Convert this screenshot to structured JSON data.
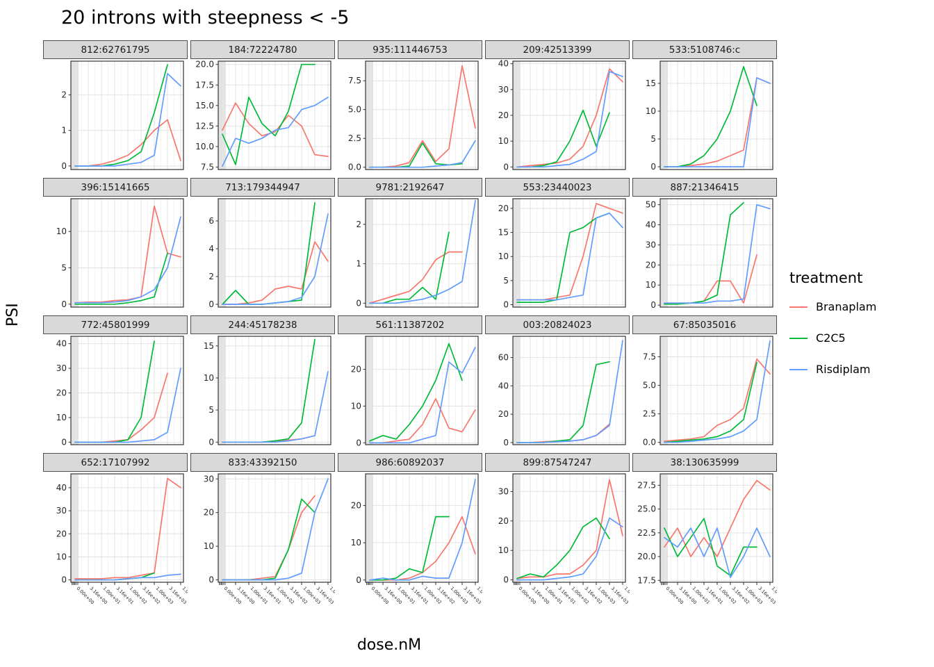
{
  "header": {
    "title": "20 introns with steepness < -5"
  },
  "axes": {
    "x_label": "dose.nM",
    "y_label": "PSI"
  },
  "legend": {
    "title": "treatment",
    "entries": [
      {
        "label": "Branaplam",
        "color": "#F8766D"
      },
      {
        "label": "C2C5",
        "color": "#00BA38"
      },
      {
        "label": "Risdiplam",
        "color": "#619CFF"
      }
    ]
  },
  "chart_data": {
    "type": "line",
    "xlabel": "dose.nM",
    "ylabel": "PSI",
    "x_labels": [
      "0.00e+00",
      "3.16e+00",
      "1.00e+01",
      "3.16e+01",
      "1.00e+02",
      "3.16e+02",
      "1.00e+03",
      "3.16e+03",
      "1.00e+04"
    ],
    "x_scale": "log-like, minor gridlines compressed at left",
    "legend_position": "right",
    "facets": [
      {
        "label": "812:62761795",
        "ylim": [
          -0.1,
          2.95
        ],
        "yticks": [
          0,
          1,
          2
        ],
        "series": {
          "Branaplam": [
            0,
            0,
            0.05,
            0.15,
            0.3,
            0.6,
            1.0,
            1.3,
            0.15
          ],
          "C2C5": [
            0,
            0,
            0,
            0.05,
            0.15,
            0.4,
            1.5,
            2.85,
            null
          ],
          "Risdiplam": [
            0,
            0,
            0,
            0,
            0.05,
            0.1,
            0.3,
            2.6,
            2.25
          ]
        }
      },
      {
        "label": "184:72224780",
        "ylim": [
          7.2,
          20.4
        ],
        "yticks": [
          7.5,
          10,
          12.5,
          15,
          17.5,
          20
        ],
        "series": {
          "Branaplam": [
            12,
            15.3,
            12.8,
            11.3,
            11.8,
            13.8,
            12.5,
            9,
            8.8
          ],
          "C2C5": [
            11.5,
            7.8,
            16,
            12.8,
            11.3,
            14.3,
            20,
            20,
            null
          ],
          "Risdiplam": [
            7.6,
            11,
            10.4,
            11,
            12,
            12.3,
            14.5,
            15,
            16
          ]
        }
      },
      {
        "label": "935:111446753",
        "ylim": [
          -0.2,
          9.2
        ],
        "yticks": [
          0,
          2.5,
          5,
          7.5
        ],
        "series": {
          "Branaplam": [
            0,
            0,
            0.1,
            0.4,
            2.3,
            0.5,
            1.6,
            8.8,
            3.4
          ],
          "C2C5": [
            0,
            0,
            0,
            0.1,
            2.1,
            0.3,
            0.2,
            0.3,
            null
          ],
          "Risdiplam": [
            0,
            0,
            0,
            0,
            0,
            0.1,
            0.2,
            0.4,
            2.3
          ]
        }
      },
      {
        "label": "209:42513399",
        "ylim": [
          -1,
          41
        ],
        "yticks": [
          0,
          10,
          20,
          30,
          40
        ],
        "series": {
          "Branaplam": [
            0,
            0.5,
            1,
            1.5,
            3,
            8,
            20,
            38,
            33
          ],
          "C2C5": [
            0,
            0,
            0.5,
            2,
            10,
            22,
            8,
            21,
            null
          ],
          "Risdiplam": [
            0,
            0,
            0,
            0.5,
            1,
            3,
            6,
            37,
            35
          ]
        }
      },
      {
        "label": "533:5108746:c",
        "ylim": [
          -0.5,
          19
        ],
        "yticks": [
          0,
          5,
          10,
          15
        ],
        "series": {
          "Branaplam": [
            0,
            0,
            0.2,
            0.5,
            1,
            2,
            3,
            16,
            15
          ],
          "C2C5": [
            0,
            0,
            0.5,
            2,
            5,
            10,
            18,
            11,
            null
          ],
          "Risdiplam": [
            0,
            0,
            0,
            0,
            0,
            0,
            0,
            16,
            15
          ]
        }
      },
      {
        "label": "396:15141665",
        "ylim": [
          -0.4,
          14.5
        ],
        "yticks": [
          0,
          5,
          10
        ],
        "series": {
          "Branaplam": [
            0.2,
            0.3,
            0.3,
            0.5,
            0.6,
            1,
            13.5,
            7,
            6.5
          ],
          "C2C5": [
            0,
            0,
            0,
            0,
            0.2,
            0.5,
            1,
            7,
            null
          ],
          "Risdiplam": [
            0.2,
            0.2,
            0.2,
            0.3,
            0.5,
            1,
            2,
            5,
            12
          ]
        }
      },
      {
        "label": "713:179344947",
        "ylim": [
          -0.2,
          7.6
        ],
        "yticks": [
          0,
          2,
          4,
          6
        ],
        "series": {
          "Branaplam": [
            0,
            0,
            0.1,
            0.3,
            1.1,
            1.3,
            1.1,
            4.5,
            3.1
          ],
          "C2C5": [
            0,
            1,
            0,
            0,
            0.1,
            0.2,
            0.3,
            7.3,
            null
          ],
          "Risdiplam": [
            0,
            0,
            0,
            0,
            0.1,
            0.2,
            0.5,
            2,
            6.5
          ]
        }
      },
      {
        "label": "9781:2192647",
        "ylim": [
          -0.1,
          2.65
        ],
        "yticks": [
          0,
          1,
          2
        ],
        "series": {
          "Branaplam": [
            0,
            0.1,
            0.2,
            0.3,
            0.6,
            1.1,
            1.3,
            1.3,
            null
          ],
          "C2C5": [
            0,
            0,
            0.1,
            0.1,
            0.4,
            0.1,
            1.8,
            null,
            null
          ],
          "Risdiplam": [
            0,
            0,
            0,
            0.05,
            0.1,
            0.2,
            0.35,
            0.55,
            2.6
          ]
        }
      },
      {
        "label": "553:23440023",
        "ylim": [
          -0.5,
          22
        ],
        "yticks": [
          0,
          5,
          10,
          15,
          20
        ],
        "series": {
          "Branaplam": [
            1,
            1,
            1,
            1.5,
            2,
            10,
            21,
            20,
            19
          ],
          "C2C5": [
            0.5,
            0.5,
            0.5,
            1,
            15,
            16,
            18,
            19,
            null
          ],
          "Risdiplam": [
            1,
            1,
            1,
            1,
            1.5,
            2,
            18,
            19,
            16
          ]
        }
      },
      {
        "label": "887:21346415",
        "ylim": [
          -1,
          53
        ],
        "yticks": [
          0,
          10,
          20,
          30,
          40,
          50
        ],
        "series": {
          "Branaplam": [
            1,
            1,
            1,
            2,
            12,
            12,
            1,
            25,
            null
          ],
          "C2C5": [
            0.5,
            0.5,
            1,
            2,
            5,
            45,
            51,
            null,
            null
          ],
          "Risdiplam": [
            1,
            1,
            1,
            1,
            2,
            2,
            3,
            50,
            48
          ]
        }
      },
      {
        "label": "772:45801999",
        "ylim": [
          -1,
          43
        ],
        "yticks": [
          0,
          10,
          20,
          30,
          40
        ],
        "series": {
          "Branaplam": [
            0,
            0,
            0,
            0.5,
            1,
            5,
            10,
            28,
            null
          ],
          "C2C5": [
            0,
            0,
            0,
            0,
            1,
            10,
            41,
            null,
            null
          ],
          "Risdiplam": [
            0,
            0,
            0,
            0,
            0,
            0.5,
            1,
            4,
            30
          ]
        }
      },
      {
        "label": "244:45178238",
        "ylim": [
          -0.4,
          16.5
        ],
        "yticks": [
          0,
          5,
          10,
          15
        ],
        "series": {
          "Branaplam": [
            0,
            0,
            0,
            0,
            0.2,
            0.3,
            0.5,
            1,
            null
          ],
          "C2C5": [
            0,
            0,
            0,
            0,
            0.2,
            0.5,
            3,
            16,
            null
          ],
          "Risdiplam": [
            0,
            0,
            0,
            0,
            0,
            0.2,
            0.5,
            1,
            11
          ]
        }
      },
      {
        "label": "561:11387202",
        "ylim": [
          -0.5,
          29
        ],
        "yticks": [
          0,
          10,
          20
        ],
        "series": {
          "Branaplam": [
            0,
            0,
            0.5,
            1,
            5,
            12,
            4,
            3,
            9
          ],
          "C2C5": [
            0.5,
            2,
            1,
            5,
            10,
            17,
            27,
            17,
            null
          ],
          "Risdiplam": [
            0,
            0,
            0,
            0,
            1,
            2,
            22,
            19,
            26
          ]
        }
      },
      {
        "label": "003:20824023",
        "ylim": [
          -1.5,
          75
        ],
        "yticks": [
          0,
          20,
          40,
          60
        ],
        "series": {
          "Branaplam": [
            0,
            0,
            0.5,
            1,
            1,
            2,
            5,
            13,
            null
          ],
          "C2C5": [
            0,
            0,
            0,
            1,
            2,
            12,
            55,
            57,
            null
          ],
          "Risdiplam": [
            0,
            0,
            0,
            0.5,
            1,
            2,
            5,
            12,
            72
          ]
        }
      },
      {
        "label": "67:85035016",
        "ylim": [
          -0.2,
          9.3
        ],
        "yticks": [
          0,
          2.5,
          5,
          7.5
        ],
        "series": {
          "Branaplam": [
            0.1,
            0.2,
            0.3,
            0.5,
            1.5,
            2,
            3,
            7.3,
            6
          ],
          "C2C5": [
            0,
            0.1,
            0.2,
            0.3,
            0.5,
            1,
            2,
            7,
            null
          ],
          "Risdiplam": [
            0,
            0,
            0.1,
            0.2,
            0.3,
            0.5,
            1,
            2,
            8.9
          ]
        }
      },
      {
        "label": "652:17107992",
        "ylim": [
          -1,
          46
        ],
        "yticks": [
          0,
          10,
          20,
          30,
          40
        ],
        "series": {
          "Branaplam": [
            0.5,
            0.5,
            0.5,
            1,
            1,
            2,
            3,
            44,
            40
          ],
          "C2C5": [
            0,
            0,
            0,
            0,
            0.5,
            1,
            3,
            null,
            null
          ],
          "Risdiplam": [
            0,
            0,
            0,
            0,
            0.5,
            1,
            1,
            2,
            2.5
          ]
        }
      },
      {
        "label": "833:43392150",
        "ylim": [
          -0.7,
          31.5
        ],
        "yticks": [
          0,
          10,
          20,
          30
        ],
        "series": {
          "Branaplam": [
            0,
            0,
            0,
            0.5,
            1,
            9,
            20,
            25,
            null
          ],
          "C2C5": [
            0,
            0,
            0,
            0,
            0.5,
            9,
            24,
            20,
            null
          ],
          "Risdiplam": [
            0,
            0,
            0,
            0,
            0,
            0.5,
            2,
            20,
            30
          ]
        }
      },
      {
        "label": "986:60892037",
        "ylim": [
          -0.6,
          28.5
        ],
        "yticks": [
          0,
          10,
          20
        ],
        "series": {
          "Branaplam": [
            0,
            0,
            0,
            0.5,
            2,
            5,
            10,
            17,
            7
          ],
          "C2C5": [
            0,
            0,
            0.5,
            3,
            2,
            17,
            17,
            null,
            null
          ],
          "Risdiplam": [
            0,
            0.5,
            0,
            0,
            1,
            0.5,
            0.5,
            10,
            27
          ]
        }
      },
      {
        "label": "899:87547247",
        "ylim": [
          -0.8,
          36
        ],
        "yticks": [
          0,
          10,
          20,
          30
        ],
        "series": {
          "Branaplam": [
            0.5,
            1,
            1,
            2,
            2,
            5,
            10,
            34,
            15
          ],
          "C2C5": [
            0.5,
            2,
            1,
            5,
            10,
            18,
            21,
            14,
            null
          ],
          "Risdiplam": [
            0,
            0,
            0,
            0.5,
            1,
            2,
            8,
            21,
            18
          ]
        }
      },
      {
        "label": "38:130635999",
        "ylim": [
          17.3,
          28.7
        ],
        "yticks": [
          17.5,
          20,
          22.5,
          25,
          27.5
        ],
        "series": {
          "Branaplam": [
            21,
            23,
            20,
            22,
            20,
            23,
            26,
            28,
            27
          ],
          "C2C5": [
            23,
            20,
            22,
            24,
            19,
            18,
            21,
            21,
            null
          ],
          "Risdiplam": [
            22,
            21,
            23,
            20,
            23,
            17.8,
            20,
            23,
            20
          ]
        }
      }
    ]
  }
}
